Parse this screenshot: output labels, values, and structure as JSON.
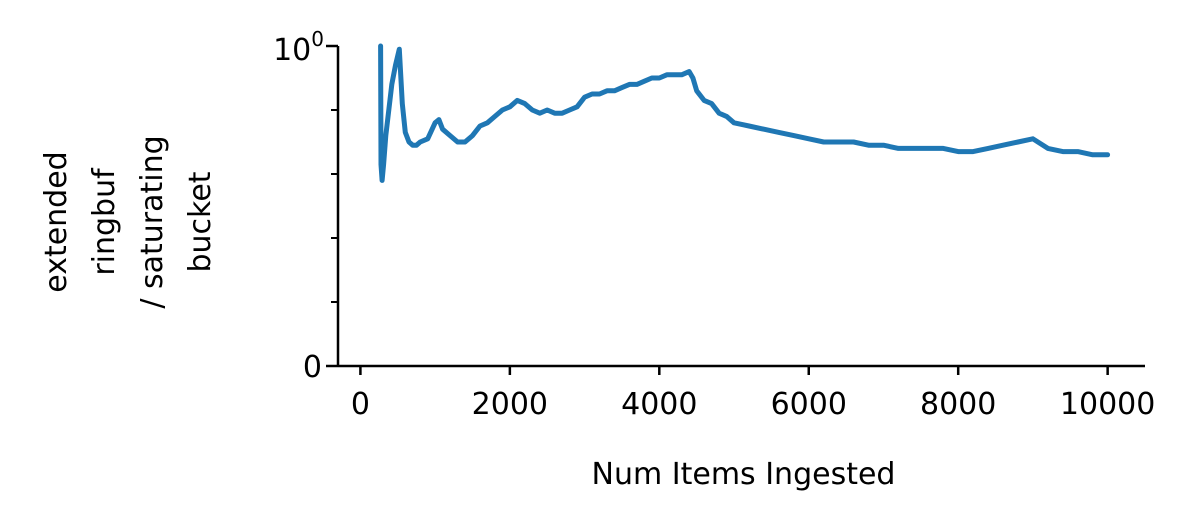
{
  "chart_data": {
    "type": "line",
    "title": "",
    "xlabel": "Num Items Ingested",
    "ylabel_lines": [
      "extended",
      "ringbuf",
      "/ saturating",
      "bucket"
    ],
    "xlim": [
      -300,
      10500
    ],
    "ylim": [
      0,
      1
    ],
    "x_ticks": [
      0,
      2000,
      4000,
      6000,
      8000,
      10000
    ],
    "x_tick_labels": [
      "0",
      "2000",
      "4000",
      "6000",
      "8000",
      "10000"
    ],
    "y_tick_labels": {
      "bottom": "0",
      "top_base": "10",
      "top_exp": "0"
    },
    "y_minor_ticks": [
      0.2,
      0.4,
      0.6,
      0.8
    ],
    "grid": false,
    "legend": "none",
    "line_color": "#1f77b4",
    "series": [
      {
        "x": [
          270,
          275,
          290,
          310,
          340,
          380,
          420,
          470,
          520,
          560,
          600,
          650,
          700,
          750,
          800,
          900,
          1000,
          1050,
          1100,
          1200,
          1300,
          1400,
          1500,
          1600,
          1700,
          1800,
          1900,
          2000,
          2100,
          2200,
          2300,
          2400,
          2500,
          2600,
          2700,
          2800,
          2900,
          3000,
          3100,
          3200,
          3300,
          3400,
          3500,
          3600,
          3700,
          3800,
          3900,
          4000,
          4100,
          4200,
          4300,
          4400,
          4450,
          4500,
          4600,
          4700,
          4800,
          4900,
          5000,
          5200,
          5400,
          5600,
          5800,
          6000,
          6200,
          6400,
          6600,
          6800,
          7000,
          7200,
          7400,
          7600,
          7800,
          8000,
          8200,
          8400,
          8600,
          8800,
          9000,
          9200,
          9400,
          9600,
          9800,
          10000
        ],
        "y": [
          1.0,
          0.63,
          0.58,
          0.63,
          0.72,
          0.8,
          0.88,
          0.94,
          0.99,
          0.82,
          0.73,
          0.7,
          0.69,
          0.69,
          0.7,
          0.71,
          0.76,
          0.77,
          0.74,
          0.72,
          0.7,
          0.7,
          0.72,
          0.75,
          0.76,
          0.78,
          0.8,
          0.81,
          0.83,
          0.82,
          0.8,
          0.79,
          0.8,
          0.79,
          0.79,
          0.8,
          0.81,
          0.84,
          0.85,
          0.85,
          0.86,
          0.86,
          0.87,
          0.88,
          0.88,
          0.89,
          0.9,
          0.9,
          0.91,
          0.91,
          0.91,
          0.92,
          0.9,
          0.86,
          0.83,
          0.82,
          0.79,
          0.78,
          0.76,
          0.75,
          0.74,
          0.73,
          0.72,
          0.71,
          0.7,
          0.7,
          0.7,
          0.69,
          0.69,
          0.68,
          0.68,
          0.68,
          0.68,
          0.67,
          0.67,
          0.68,
          0.69,
          0.7,
          0.71,
          0.68,
          0.67,
          0.67,
          0.66,
          0.66
        ]
      }
    ]
  }
}
